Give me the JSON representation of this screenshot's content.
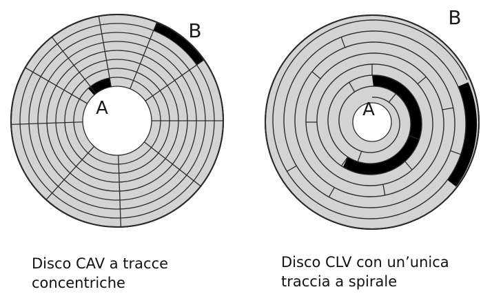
{
  "colors": {
    "track_fill": "#d3d3d3",
    "line": "#2a2a2a",
    "highlight": "#000000",
    "background": "#ffffff"
  },
  "cav_disk": {
    "label_a": "A",
    "label_b": "B",
    "caption_line1": "Disco CAV a tracce",
    "caption_line2": "concentriche"
  },
  "clv_disk": {
    "label_a": "A",
    "label_b": "B",
    "caption_line1": "Disco CLV con un’unica",
    "caption_line2": "traccia a spirale"
  }
}
